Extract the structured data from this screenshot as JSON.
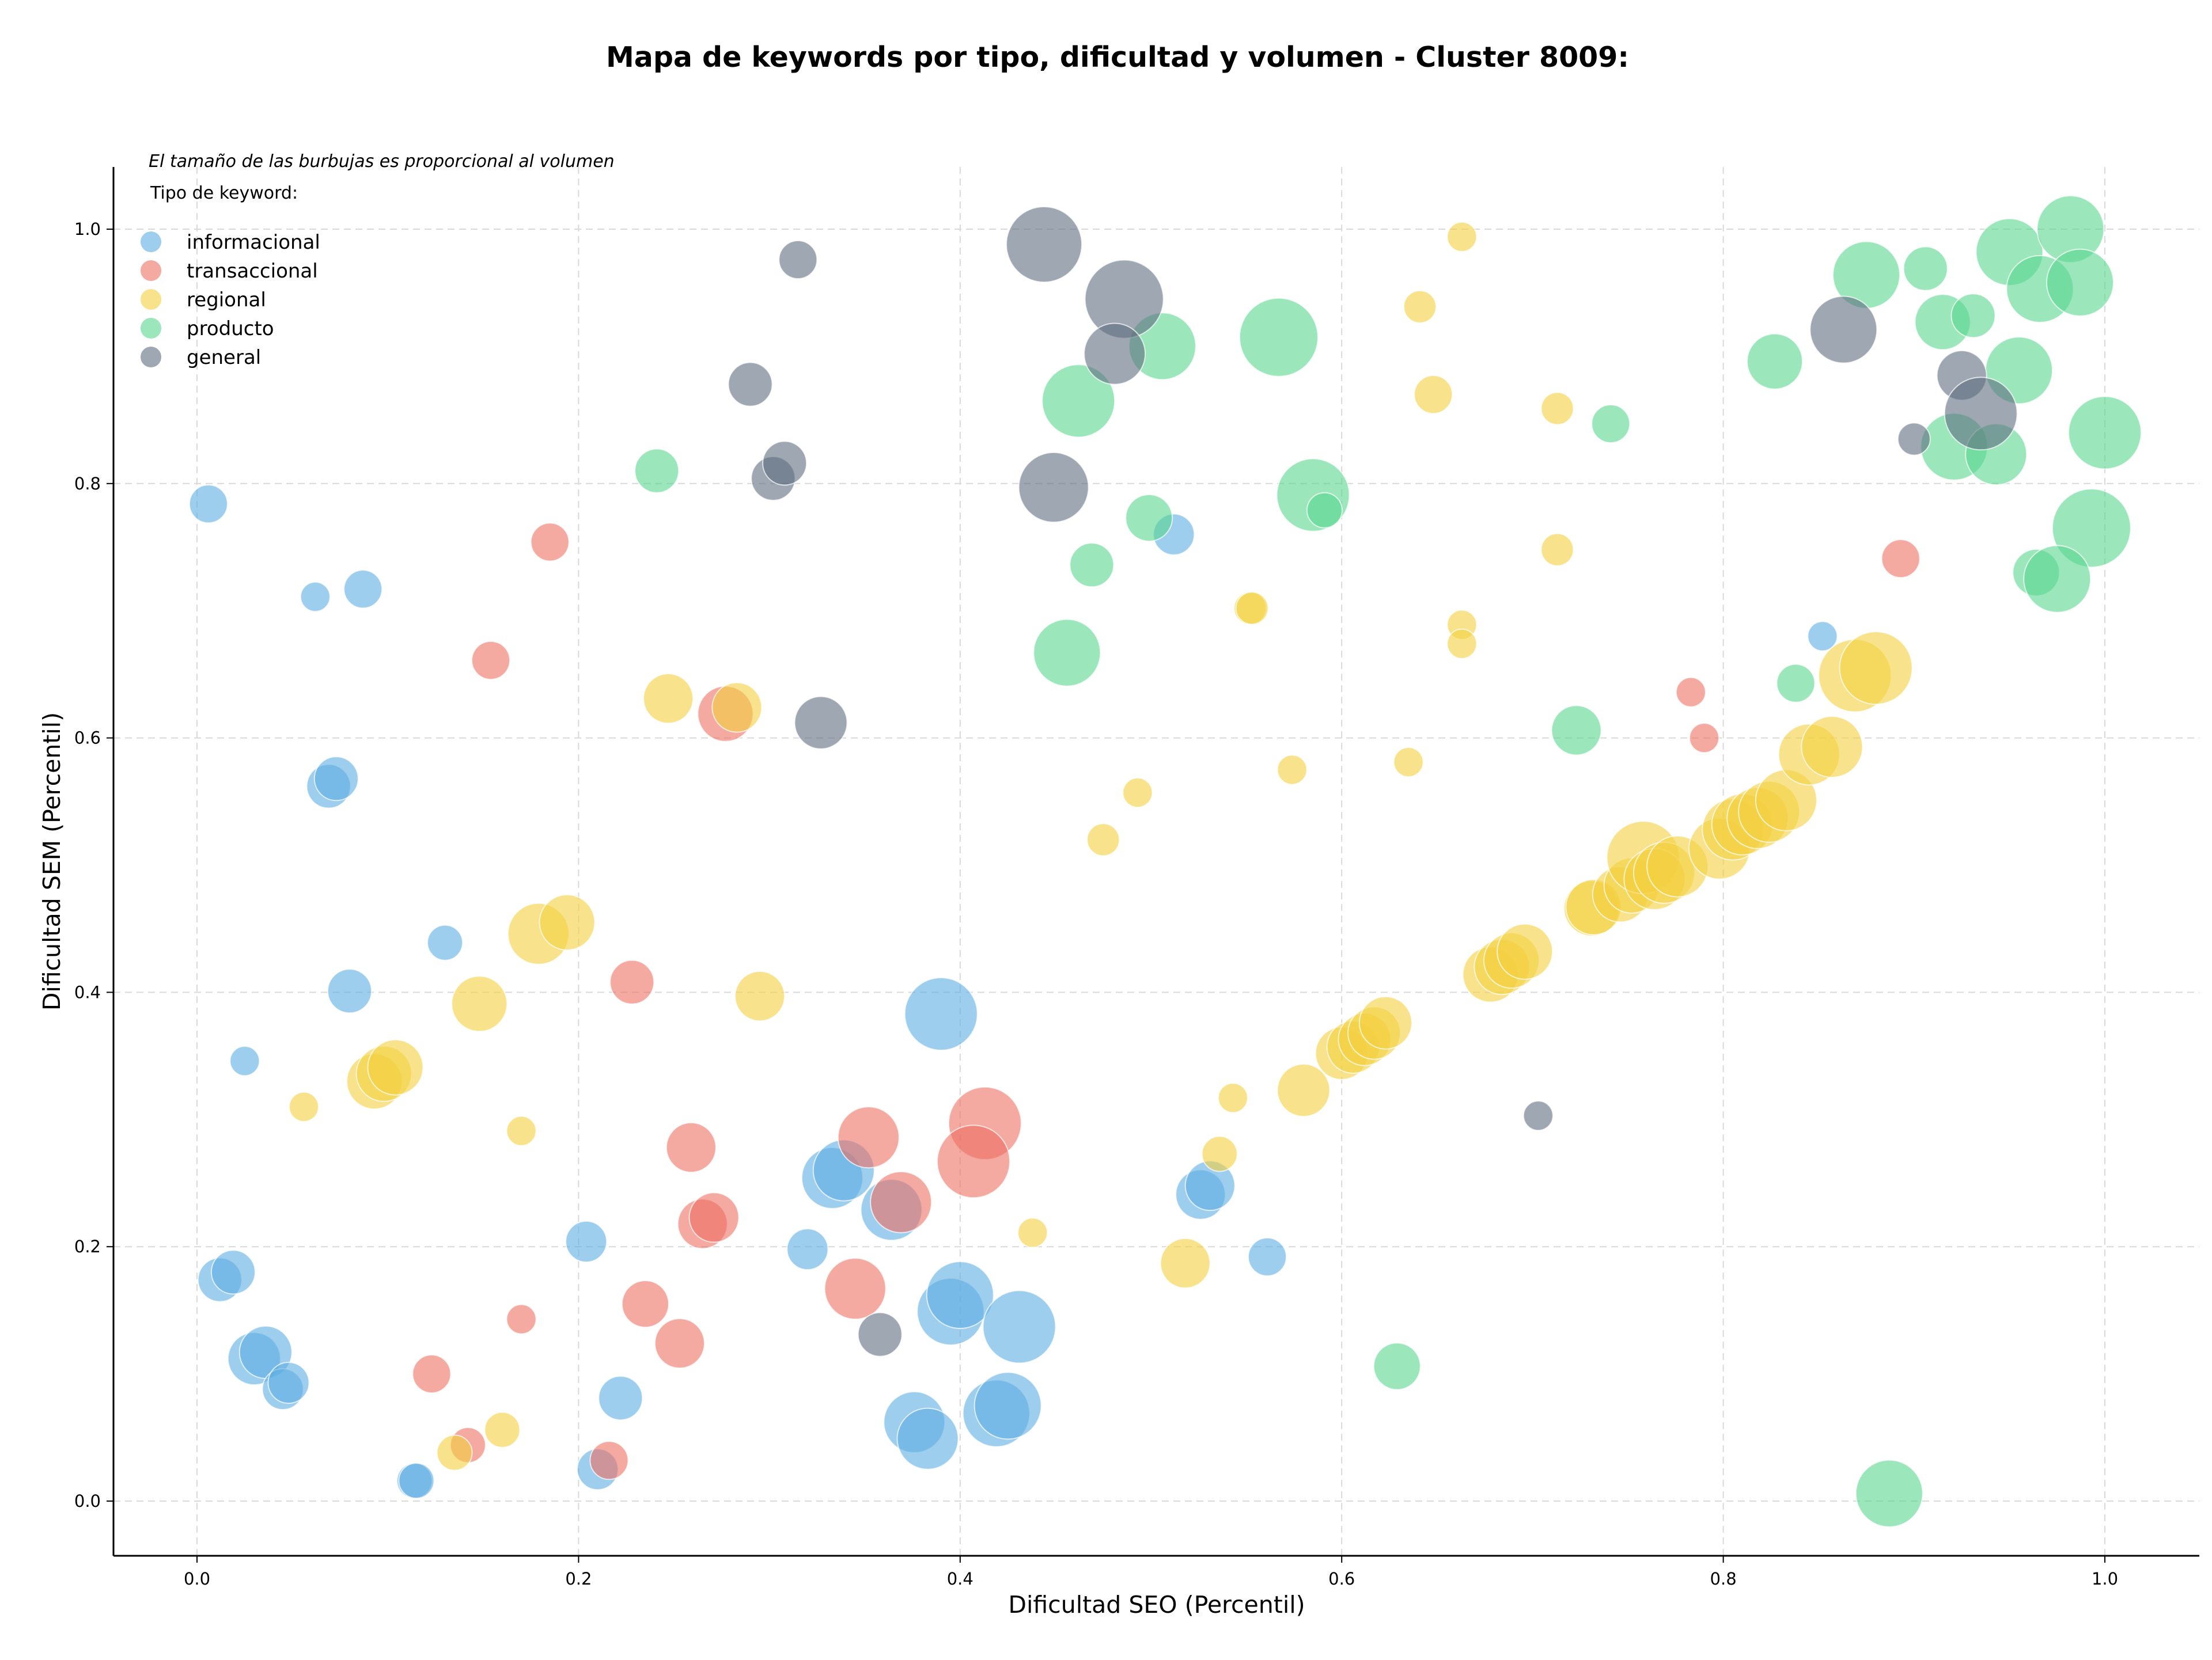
{
  "chart_data": {
    "type": "scatter",
    "title": "Mapa de keywords por tipo, dificultad y volumen - Cluster 8009:",
    "xlabel": "Dificultad SEO (Percentil)",
    "ylabel": "Dificultad SEM (Percentil)",
    "xlim": [
      -0.04,
      1.05
    ],
    "ylim": [
      -0.04,
      1.05
    ],
    "xticks": [
      "0.0",
      "0.2",
      "0.4",
      "0.6",
      "0.8",
      "1.0"
    ],
    "yticks": [
      "0.0",
      "0.2",
      "0.4",
      "0.6",
      "0.8",
      "1.0"
    ],
    "grid": true,
    "note": "El tamaño de las burbujas es proporcional al volumen",
    "legend": {
      "title": "Tipo de keyword:",
      "placement": "top-left"
    },
    "series": [
      {
        "name": "informacional",
        "color": "#5dade2",
        "points": [
          [
            0.006,
            0.784,
            0.3
          ],
          [
            0.062,
            0.711,
            0.15
          ],
          [
            0.087,
            0.717,
            0.3
          ],
          [
            0.069,
            0.562,
            0.4
          ],
          [
            0.073,
            0.568,
            0.4
          ],
          [
            0.512,
            0.76,
            0.35
          ],
          [
            0.13,
            0.439,
            0.25
          ],
          [
            0.08,
            0.401,
            0.4
          ],
          [
            0.025,
            0.346,
            0.15
          ],
          [
            0.39,
            0.383,
            0.9
          ],
          [
            0.012,
            0.174,
            0.4
          ],
          [
            0.019,
            0.18,
            0.4
          ],
          [
            0.03,
            0.112,
            0.55
          ],
          [
            0.036,
            0.117,
            0.55
          ],
          [
            0.045,
            0.088,
            0.35
          ],
          [
            0.048,
            0.093,
            0.35
          ],
          [
            0.114,
            0.016,
            0.25
          ],
          [
            0.115,
            0.016,
            0.25
          ],
          [
            0.204,
            0.204,
            0.35
          ],
          [
            0.222,
            0.081,
            0.4
          ],
          [
            0.21,
            0.025,
            0.35
          ],
          [
            0.32,
            0.198,
            0.35
          ],
          [
            0.333,
            0.254,
            0.7
          ],
          [
            0.339,
            0.26,
            0.7
          ],
          [
            0.364,
            0.229,
            0.7
          ],
          [
            0.376,
            0.062,
            0.7
          ],
          [
            0.383,
            0.049,
            0.7
          ],
          [
            0.395,
            0.149,
            0.8
          ],
          [
            0.4,
            0.162,
            0.8
          ],
          [
            0.419,
            0.069,
            0.8
          ],
          [
            0.425,
            0.075,
            0.8
          ],
          [
            0.431,
            0.137,
            0.9
          ],
          [
            0.526,
            0.241,
            0.5
          ],
          [
            0.531,
            0.248,
            0.5
          ],
          [
            0.561,
            0.192,
            0.3
          ],
          [
            0.852,
            0.68,
            0.15
          ]
        ]
      },
      {
        "name": "transaccional",
        "color": "#ec7063",
        "points": [
          [
            0.185,
            0.754,
            0.3
          ],
          [
            0.154,
            0.661,
            0.3
          ],
          [
            0.277,
            0.619,
            0.6
          ],
          [
            0.228,
            0.408,
            0.4
          ],
          [
            0.259,
            0.278,
            0.5
          ],
          [
            0.265,
            0.218,
            0.5
          ],
          [
            0.271,
            0.223,
            0.5
          ],
          [
            0.235,
            0.155,
            0.45
          ],
          [
            0.253,
            0.124,
            0.5
          ],
          [
            0.123,
            0.1,
            0.3
          ],
          [
            0.17,
            0.143,
            0.15
          ],
          [
            0.142,
            0.044,
            0.25
          ],
          [
            0.216,
            0.032,
            0.3
          ],
          [
            0.352,
            0.286,
            0.7
          ],
          [
            0.345,
            0.167,
            0.7
          ],
          [
            0.369,
            0.235,
            0.7
          ],
          [
            0.413,
            0.297,
            0.9
          ],
          [
            0.407,
            0.267,
            0.9
          ],
          [
            0.893,
            0.741,
            0.3
          ],
          [
            0.783,
            0.636,
            0.15
          ],
          [
            0.79,
            0.6,
            0.15
          ]
        ]
      },
      {
        "name": "regional",
        "color": "#f4d03f",
        "points": [
          [
            0.663,
            0.994,
            0.15
          ],
          [
            0.641,
            0.939,
            0.2
          ],
          [
            0.648,
            0.87,
            0.3
          ],
          [
            0.713,
            0.859,
            0.2
          ],
          [
            0.713,
            0.748,
            0.2
          ],
          [
            0.552,
            0.702,
            0.2
          ],
          [
            0.553,
            0.702,
            0.2
          ],
          [
            0.663,
            0.689,
            0.15
          ],
          [
            0.663,
            0.674,
            0.15
          ],
          [
            0.247,
            0.631,
            0.5
          ],
          [
            0.283,
            0.624,
            0.5
          ],
          [
            0.574,
            0.575,
            0.15
          ],
          [
            0.635,
            0.581,
            0.15
          ],
          [
            0.493,
            0.557,
            0.15
          ],
          [
            0.475,
            0.52,
            0.2
          ],
          [
            0.179,
            0.446,
            0.7
          ],
          [
            0.194,
            0.455,
            0.6
          ],
          [
            0.148,
            0.391,
            0.6
          ],
          [
            0.295,
            0.397,
            0.5
          ],
          [
            0.093,
            0.33,
            0.6
          ],
          [
            0.098,
            0.336,
            0.6
          ],
          [
            0.104,
            0.341,
            0.6
          ],
          [
            0.056,
            0.31,
            0.15
          ],
          [
            0.17,
            0.291,
            0.15
          ],
          [
            0.543,
            0.317,
            0.15
          ],
          [
            0.536,
            0.273,
            0.25
          ],
          [
            0.438,
            0.211,
            0.15
          ],
          [
            0.518,
            0.187,
            0.5
          ],
          [
            0.16,
            0.056,
            0.25
          ],
          [
            0.135,
            0.038,
            0.25
          ],
          [
            0.58,
            0.323,
            0.55
          ],
          [
            0.6,
            0.352,
            0.55
          ],
          [
            0.606,
            0.357,
            0.55
          ],
          [
            0.612,
            0.363,
            0.55
          ],
          [
            0.617,
            0.368,
            0.55
          ],
          [
            0.623,
            0.376,
            0.55
          ],
          [
            0.678,
            0.414,
            0.6
          ],
          [
            0.684,
            0.42,
            0.6
          ],
          [
            0.689,
            0.425,
            0.6
          ],
          [
            0.696,
            0.432,
            0.6
          ],
          [
            0.731,
            0.466,
            0.6
          ],
          [
            0.732,
            0.467,
            0.6
          ],
          [
            0.746,
            0.477,
            0.6
          ],
          [
            0.752,
            0.484,
            0.6
          ],
          [
            0.758,
            0.506,
            0.9
          ],
          [
            0.764,
            0.489,
            0.7
          ],
          [
            0.769,
            0.494,
            0.7
          ],
          [
            0.776,
            0.499,
            0.7
          ],
          [
            0.798,
            0.513,
            0.7
          ],
          [
            0.805,
            0.528,
            0.7
          ],
          [
            0.81,
            0.532,
            0.7
          ],
          [
            0.818,
            0.537,
            0.7
          ],
          [
            0.824,
            0.542,
            0.7
          ],
          [
            0.833,
            0.551,
            0.7
          ],
          [
            0.845,
            0.587,
            0.7
          ],
          [
            0.857,
            0.593,
            0.7
          ],
          [
            0.869,
            0.649,
            0.9
          ],
          [
            0.88,
            0.655,
            0.9
          ]
        ]
      },
      {
        "name": "producto",
        "color": "#58d68d",
        "points": [
          [
            0.241,
            0.81,
            0.4
          ],
          [
            0.462,
            0.865,
            0.9
          ],
          [
            0.506,
            0.908,
            0.8
          ],
          [
            0.567,
            0.915,
            1.0
          ],
          [
            0.585,
            0.791,
            0.9
          ],
          [
            0.591,
            0.779,
            0.25
          ],
          [
            0.499,
            0.773,
            0.45
          ],
          [
            0.469,
            0.736,
            0.4
          ],
          [
            0.456,
            0.667,
            0.8
          ],
          [
            0.741,
            0.847,
            0.3
          ],
          [
            0.723,
            0.606,
            0.5
          ],
          [
            0.838,
            0.643,
            0.3
          ],
          [
            0.827,
            0.896,
            0.6
          ],
          [
            0.875,
            0.964,
            0.8
          ],
          [
            0.906,
            0.969,
            0.4
          ],
          [
            0.915,
            0.927,
            0.6
          ],
          [
            0.931,
            0.932,
            0.4
          ],
          [
            0.95,
            0.982,
            0.8
          ],
          [
            0.982,
            1.0,
            0.8
          ],
          [
            0.966,
            0.953,
            0.8
          ],
          [
            0.987,
            0.958,
            0.8
          ],
          [
            0.955,
            0.889,
            0.8
          ],
          [
            0.921,
            0.829,
            0.8
          ],
          [
            0.943,
            0.823,
            0.7
          ],
          [
            1.0,
            0.84,
            0.9
          ],
          [
            0.993,
            0.765,
            1.0
          ],
          [
            0.964,
            0.73,
            0.45
          ],
          [
            0.975,
            0.725,
            0.8
          ],
          [
            0.629,
            0.106,
            0.45
          ],
          [
            0.887,
            0.006,
            0.8
          ]
        ]
      },
      {
        "name": "general",
        "color": "#5d6d7e",
        "points": [
          [
            0.444,
            0.988,
            0.95
          ],
          [
            0.486,
            0.945,
            1.0
          ],
          [
            0.481,
            0.902,
            0.7
          ],
          [
            0.449,
            0.797,
            0.85
          ],
          [
            0.315,
            0.976,
            0.3
          ],
          [
            0.29,
            0.878,
            0.4
          ],
          [
            0.302,
            0.804,
            0.4
          ],
          [
            0.308,
            0.816,
            0.4
          ],
          [
            0.327,
            0.612,
            0.55
          ],
          [
            0.358,
            0.131,
            0.4
          ],
          [
            0.703,
            0.303,
            0.15
          ],
          [
            0.863,
            0.921,
            0.8
          ],
          [
            0.925,
            0.885,
            0.5
          ],
          [
            0.935,
            0.855,
            0.9
          ],
          [
            0.9,
            0.835,
            0.2
          ]
        ]
      }
    ]
  }
}
